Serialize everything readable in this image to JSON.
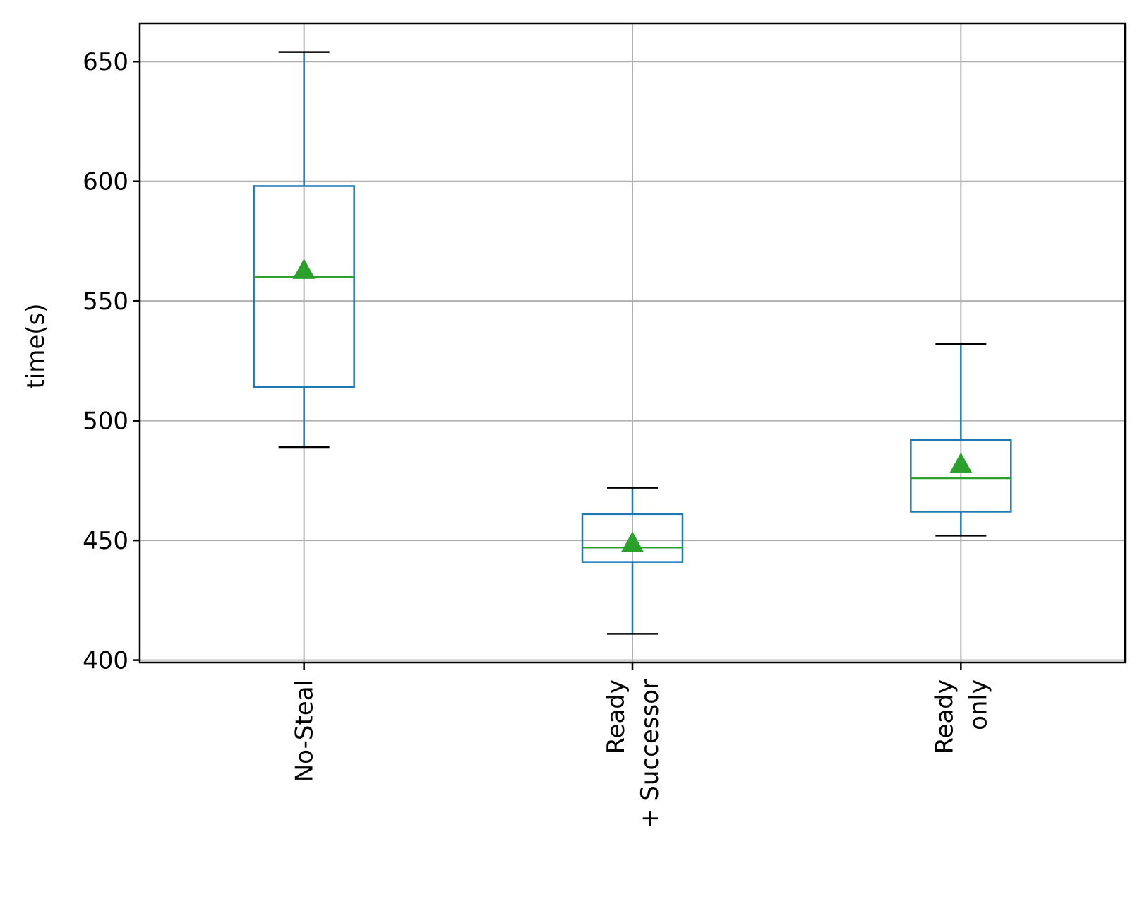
{
  "chart_data": {
    "type": "box",
    "ylabel": "time(s)",
    "xlabel": "",
    "ylim": [
      399,
      666
    ],
    "yticks": [
      400,
      450,
      500,
      550,
      600,
      650
    ],
    "grid": true,
    "categories": [
      {
        "label_lines": [
          "No-Steal"
        ]
      },
      {
        "label_lines": [
          "Ready",
          "+ Successor"
        ]
      },
      {
        "label_lines": [
          "Ready",
          "only"
        ]
      }
    ],
    "boxes": [
      {
        "whisker_low": 489,
        "q1": 514,
        "median": 560,
        "mean": 563,
        "q3": 598,
        "whisker_high": 654
      },
      {
        "whisker_low": 411,
        "q1": 441,
        "median": 447,
        "mean": 449,
        "q3": 461,
        "whisker_high": 472
      },
      {
        "whisker_low": 452,
        "q1": 462,
        "median": 476,
        "mean": 482,
        "q3": 492,
        "whisker_high": 532
      }
    ],
    "colors": {
      "box": "#1f77b4",
      "median": "#2ca02c",
      "mean_marker": "#2ca02c",
      "whisker_cap": "#000000",
      "grid": "#b0b0b0"
    }
  }
}
